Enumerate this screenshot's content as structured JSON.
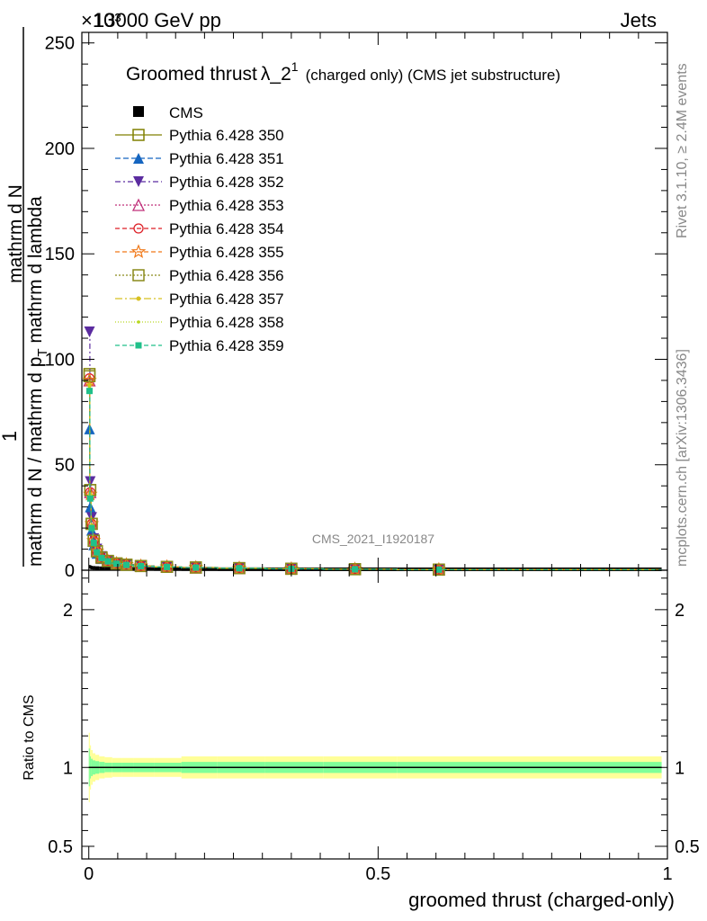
{
  "header": {
    "energy_label": "13000 GeV pp",
    "process_label": "Jets",
    "exponent_label": "×10³"
  },
  "side_labels": {
    "rivet": "Rivet 3.1.10, ≥ 2.4M events",
    "mcplots": "mcplots.cern.ch [arXiv:1306.3436]"
  },
  "watermark": "CMS_2021_I1920187",
  "main_title": {
    "text": "Groomed thrust",
    "symbol": "λ_2",
    "superscript": "1",
    "suffix": "(charged only) (CMS jet substructure)"
  },
  "ylabel_top": {
    "numerator": "1",
    "denominator": "mathrm d N / mathrm d p",
    "sub": "T",
    "rest": "mathrm d N",
    "line2_a": "mathrm d",
    "line2_b": "N",
    "line3": "mathrm d p",
    "line3_sub": "T",
    "line3_rest": "mathrm d lambda"
  },
  "ylabel_ratio": "Ratio to CMS",
  "xlabel": "groomed thrust (charged-only)",
  "chart_data": {
    "type": "line",
    "x": [
      0.0012,
      0.0025,
      0.005,
      0.0085,
      0.014,
      0.022,
      0.033,
      0.048,
      0.065,
      0.09,
      0.135,
      0.185,
      0.26,
      0.35,
      0.46,
      0.605
    ],
    "xlim": [
      -0.012,
      1.0
    ],
    "ylim": [
      0,
      255
    ],
    "y_scale_exponent": 3,
    "yticks": [
      0,
      50,
      100,
      150,
      200,
      250
    ],
    "xticks": [
      0,
      0.5,
      1
    ],
    "xtick_labels": [
      "0",
      "0.5",
      "1"
    ],
    "ratio_ylim": [
      0.42,
      2.25
    ],
    "ratio_yticks": [
      0.5,
      1,
      2
    ],
    "ratio_ytick_labels": [
      "0.5",
      "1",
      "2"
    ],
    "cms": {
      "name": "CMS",
      "values": [
        1.2,
        1.0,
        0.8,
        0.7,
        0.6,
        0.5,
        0.4,
        0.3,
        0.25,
        0.2,
        0.15,
        0.1,
        0.07,
        0.05,
        0.03,
        0.02
      ],
      "color": "#000000"
    },
    "series": [
      {
        "name": "Pythia 6.428 350",
        "color": "#808000",
        "marker": "square-open",
        "dash": "",
        "values": [
          93,
          38,
          22,
          14,
          9,
          6,
          4.4,
          3.2,
          2.6,
          2.0,
          1.6,
          1.3,
          1.0,
          0.7,
          0.5,
          0.3
        ]
      },
      {
        "name": "Pythia 6.428 351",
        "color": "#1565c0",
        "marker": "triangle-up",
        "dash": "6,3",
        "values": [
          67,
          30,
          19,
          12,
          8,
          5.5,
          4.1,
          3.0,
          2.4,
          1.9,
          1.5,
          1.2,
          0.9,
          0.65,
          0.45,
          0.28
        ]
      },
      {
        "name": "Pythia 6.428 352",
        "color": "#5b2ca0",
        "marker": "triangle-down",
        "dash": "6,3,2,3",
        "values": [
          113,
          42,
          25,
          15,
          10,
          6.5,
          4.6,
          3.3,
          2.7,
          2.1,
          1.6,
          1.3,
          1.0,
          0.7,
          0.5,
          0.3
        ]
      },
      {
        "name": "Pythia 6.428 353",
        "color": "#c0307a",
        "marker": "triangle-up-open",
        "dash": "2,2",
        "values": [
          90,
          37,
          22,
          14,
          9,
          6,
          4.4,
          3.2,
          2.6,
          2.0,
          1.6,
          1.3,
          1.0,
          0.7,
          0.5,
          0.3
        ]
      },
      {
        "name": "Pythia 6.428 354",
        "color": "#dd1f26",
        "marker": "circle-open",
        "dash": "5,3",
        "values": [
          91,
          37,
          22,
          14,
          9,
          6,
          4.4,
          3.2,
          2.6,
          2.0,
          1.6,
          1.3,
          1.0,
          0.7,
          0.5,
          0.3
        ]
      },
      {
        "name": "Pythia 6.428 355",
        "color": "#f07818",
        "marker": "star-open",
        "dash": "5,3",
        "values": [
          90,
          36,
          22,
          14,
          9,
          6,
          4.4,
          3.2,
          2.6,
          2.0,
          1.6,
          1.3,
          1.0,
          0.7,
          0.5,
          0.3
        ]
      },
      {
        "name": "Pythia 6.428 356",
        "color": "#8a8a1a",
        "marker": "square-open",
        "dash": "2,2",
        "values": [
          92,
          38,
          22,
          14,
          9,
          6,
          4.4,
          3.2,
          2.6,
          2.0,
          1.6,
          1.3,
          1.0,
          0.7,
          0.5,
          0.3
        ]
      },
      {
        "name": "Pythia 6.428 357",
        "color": "#d8c020",
        "marker": "dot",
        "dash": "8,3,2,3",
        "values": [
          88,
          36,
          21,
          13.5,
          8.8,
          5.9,
          4.3,
          3.1,
          2.5,
          1.95,
          1.55,
          1.25,
          0.95,
          0.68,
          0.48,
          0.29
        ]
      },
      {
        "name": "Pythia 6.428 358",
        "color": "#b8d820",
        "marker": "dot-small",
        "dash": "1,2",
        "values": [
          87,
          35,
          21,
          13.5,
          8.7,
          5.9,
          4.3,
          3.1,
          2.5,
          1.95,
          1.55,
          1.25,
          0.95,
          0.68,
          0.48,
          0.29
        ]
      },
      {
        "name": "Pythia 6.428 359",
        "color": "#20c08a",
        "marker": "square-small",
        "dash": "5,3",
        "values": [
          85,
          34,
          20,
          13,
          8.5,
          5.8,
          4.2,
          3.1,
          2.5,
          1.95,
          1.55,
          1.25,
          0.95,
          0.68,
          0.48,
          0.29
        ]
      }
    ],
    "ratio_bands": {
      "outer_color": "#ffff99",
      "inner_color": "#80ff99",
      "outer_halfwidth": [
        0.22,
        0.14,
        0.11,
        0.09,
        0.08,
        0.07,
        0.065,
        0.06,
        0.06,
        0.06,
        0.06,
        0.07,
        0.07,
        0.07,
        0.07,
        0.07
      ],
      "inner_halfwidth": [
        0.12,
        0.07,
        0.055,
        0.045,
        0.04,
        0.035,
        0.03,
        0.03,
        0.03,
        0.03,
        0.03,
        0.035,
        0.035,
        0.035,
        0.035,
        0.035
      ]
    }
  }
}
